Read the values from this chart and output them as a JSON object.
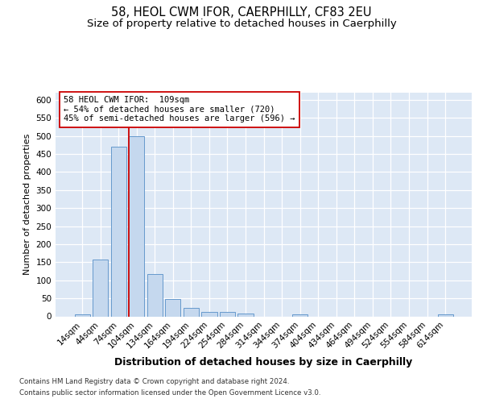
{
  "title1": "58, HEOL CWM IFOR, CAERPHILLY, CF83 2EU",
  "title2": "Size of property relative to detached houses in Caerphilly",
  "xlabel": "Distribution of detached houses by size in Caerphilly",
  "ylabel": "Number of detached properties",
  "categories": [
    "14sqm",
    "44sqm",
    "74sqm",
    "104sqm",
    "134sqm",
    "164sqm",
    "194sqm",
    "224sqm",
    "254sqm",
    "284sqm",
    "314sqm",
    "344sqm",
    "374sqm",
    "404sqm",
    "434sqm",
    "464sqm",
    "494sqm",
    "524sqm",
    "554sqm",
    "584sqm",
    "614sqm"
  ],
  "bar_values": [
    5,
    158,
    470,
    500,
    117,
    49,
    24,
    13,
    12,
    8,
    0,
    0,
    6,
    0,
    0,
    0,
    0,
    0,
    0,
    0,
    5
  ],
  "bar_color": "#c5d8ee",
  "bar_edge_color": "#6699cc",
  "property_bin_index": 3,
  "vline_color": "#cc0000",
  "annotation_line1": "58 HEOL CWM IFOR:  109sqm",
  "annotation_line2": "← 54% of detached houses are smaller (720)",
  "annotation_line3": "45% of semi-detached houses are larger (596) →",
  "annotation_box_color": "#ffffff",
  "annotation_box_edge": "#cc0000",
  "ylim": [
    0,
    620
  ],
  "yticks": [
    0,
    50,
    100,
    150,
    200,
    250,
    300,
    350,
    400,
    450,
    500,
    550,
    600
  ],
  "bg_color": "#dde8f5",
  "grid_color": "#ffffff",
  "title1_fontsize": 10.5,
  "title2_fontsize": 9.5,
  "xlabel_fontsize": 9,
  "ylabel_fontsize": 8,
  "tick_fontsize": 7.5,
  "annotation_fontsize": 7.5,
  "footer1": "Contains HM Land Registry data © Crown copyright and database right 2024.",
  "footer2": "Contains public sector information licensed under the Open Government Licence v3.0.",
  "footer_fontsize": 6.2
}
